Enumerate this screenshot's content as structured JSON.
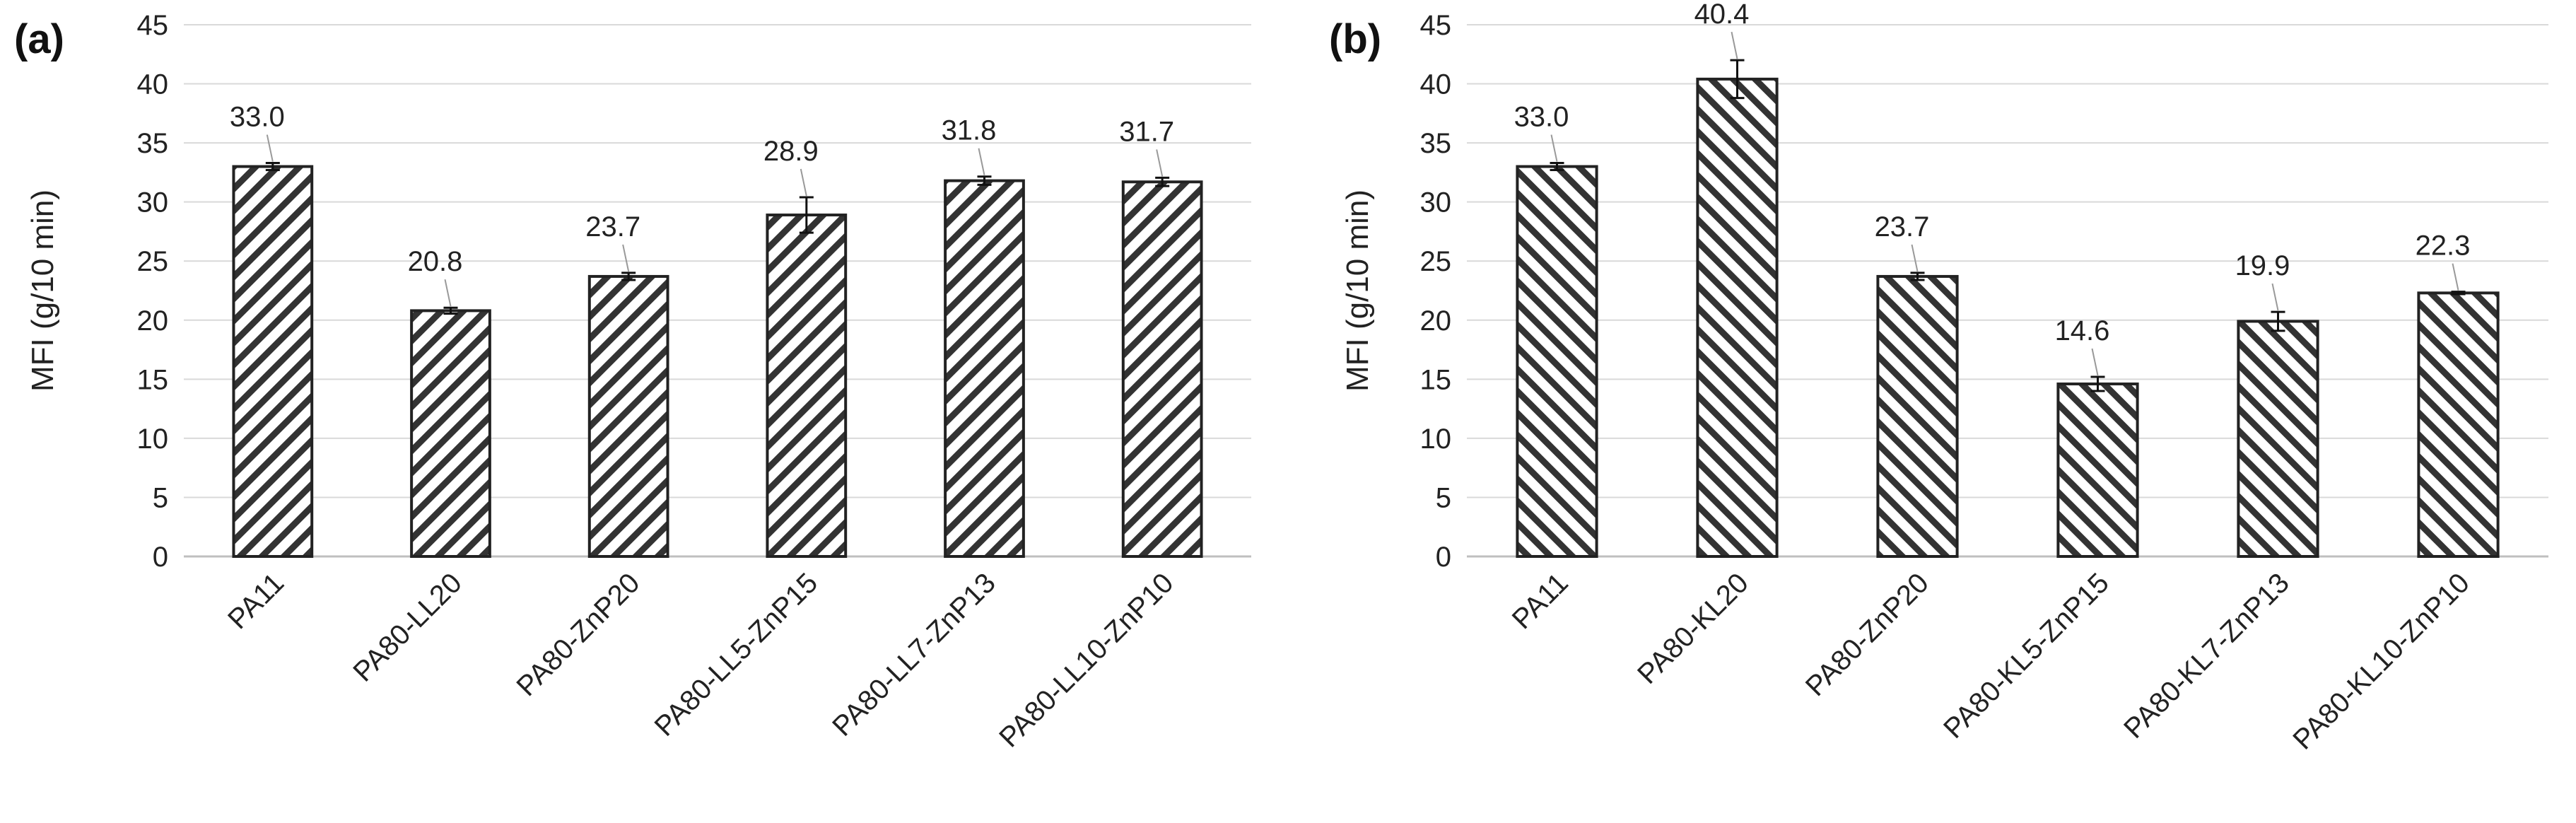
{
  "chart_data": [
    {
      "type": "bar",
      "panel_label": "(a)",
      "ylabel": "MFI (g/10 min)",
      "xlabel": "",
      "ylim": [
        0,
        45
      ],
      "yticks": [
        0,
        5,
        10,
        15,
        20,
        25,
        30,
        35,
        40,
        45
      ],
      "grid": true,
      "hatch": "forward-diagonal",
      "categories": [
        "PA11",
        "PA80-LL20",
        "PA80-ZnP20",
        "PA80-LL5-ZnP15",
        "PA80-LL7-ZnP13",
        "PA80-LL10-ZnP10"
      ],
      "values": [
        33.0,
        20.8,
        23.7,
        28.9,
        31.8,
        31.7
      ],
      "errors": [
        0.3,
        0.25,
        0.3,
        1.5,
        0.35,
        0.35
      ],
      "data_labels": [
        "33.0",
        "20.8",
        "23.7",
        "28.9",
        "31.8",
        "31.7"
      ]
    },
    {
      "type": "bar",
      "panel_label": "(b)",
      "ylabel": "MFI (g/10 min)",
      "xlabel": "",
      "ylim": [
        0,
        45
      ],
      "yticks": [
        0,
        5,
        10,
        15,
        20,
        25,
        30,
        35,
        40,
        45
      ],
      "grid": true,
      "hatch": "back-diagonal",
      "categories": [
        "PA11",
        "PA80-KL20",
        "PA80-ZnP20",
        "PA80-KL5-ZnP15",
        "PA80-KL7-ZnP13",
        "PA80-KL10-ZnP10"
      ],
      "values": [
        33.0,
        40.4,
        23.7,
        14.6,
        19.9,
        22.3
      ],
      "errors": [
        0.3,
        1.6,
        0.3,
        0.6,
        0.8,
        0.1
      ],
      "data_labels": [
        "33.0",
        "40.4",
        "23.7",
        "14.6",
        "19.9",
        "22.3"
      ]
    }
  ],
  "colors": {
    "bar_stroke": "#222222",
    "hatch_line": "#333333",
    "bar_fill": "#ffffff",
    "grid": "#d9d9d9",
    "axis": "#bfbfbf",
    "text": "#222222"
  }
}
